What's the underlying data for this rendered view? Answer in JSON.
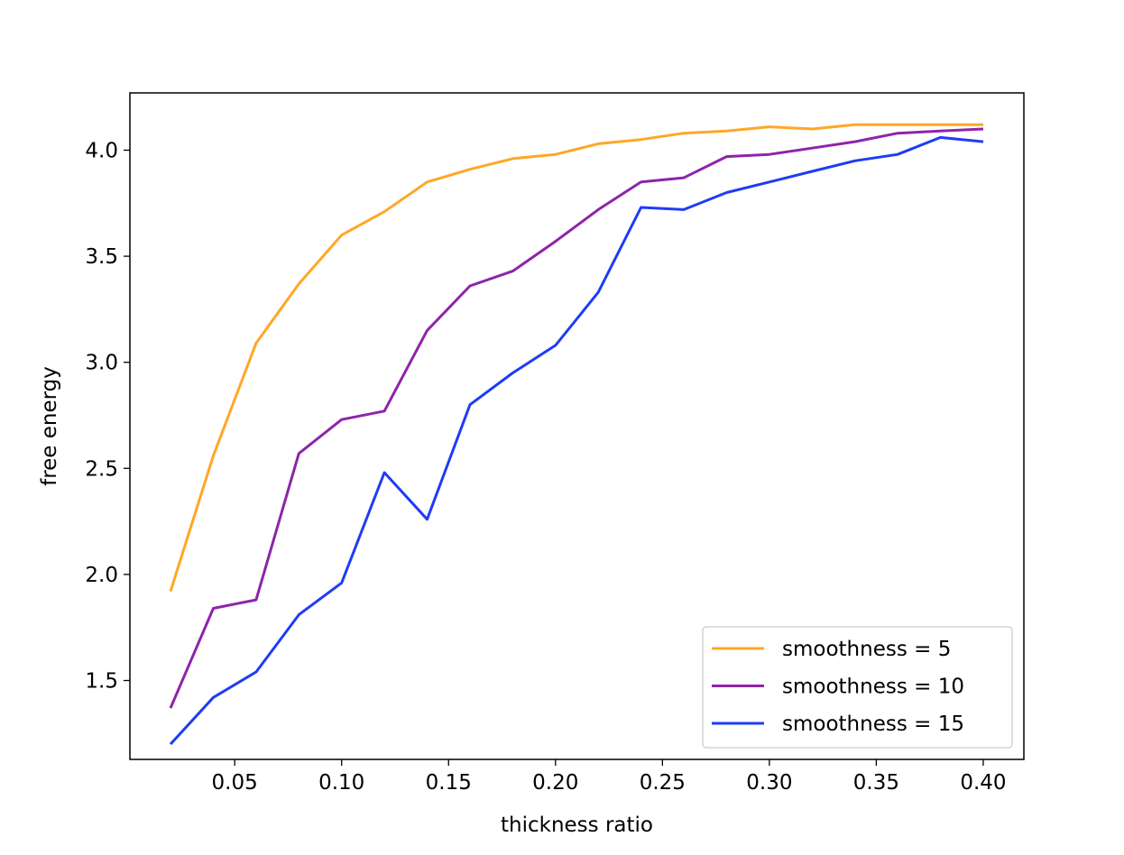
{
  "chart_data": {
    "type": "line",
    "title": "",
    "xlabel": "thickness ratio",
    "ylabel": "free energy",
    "xlim": [
      0.001,
      0.419
    ],
    "ylim": [
      1.128,
      4.27
    ],
    "xticks": [
      0.05,
      0.1,
      0.15,
      0.2,
      0.25,
      0.3,
      0.35,
      0.4
    ],
    "xtick_labels": [
      "0.05",
      "0.10",
      "0.15",
      "0.20",
      "0.25",
      "0.30",
      "0.35",
      "0.40"
    ],
    "yticks": [
      1.5,
      2.0,
      2.5,
      3.0,
      3.5,
      4.0
    ],
    "ytick_labels": [
      "1.5",
      "2.0",
      "2.5",
      "3.0",
      "3.5",
      "4.0"
    ],
    "grid": false,
    "legend_position": "lower-right",
    "x": [
      0.02,
      0.04,
      0.06,
      0.08,
      0.1,
      0.12,
      0.14,
      0.16,
      0.18,
      0.2,
      0.22,
      0.24,
      0.26,
      0.28,
      0.3,
      0.32,
      0.34,
      0.36,
      0.38,
      0.4
    ],
    "series": [
      {
        "name": "smoothness = 5",
        "color": "#ffa726",
        "values": [
          1.92,
          2.56,
          3.09,
          3.37,
          3.6,
          3.71,
          3.85,
          3.91,
          3.96,
          3.98,
          4.03,
          4.05,
          4.08,
          4.09,
          4.11,
          4.1,
          4.12,
          4.12,
          4.12,
          4.12
        ]
      },
      {
        "name": "smoothness = 10",
        "color": "#8e24aa",
        "values": [
          1.37,
          1.84,
          1.88,
          2.57,
          2.73,
          2.77,
          3.15,
          3.36,
          3.43,
          3.57,
          3.72,
          3.85,
          3.87,
          3.97,
          3.98,
          4.01,
          4.04,
          4.08,
          4.09,
          4.1
        ]
      },
      {
        "name": "smoothness = 15",
        "color": "#1e3cf5",
        "values": [
          1.2,
          1.42,
          1.54,
          1.81,
          1.96,
          2.48,
          2.26,
          2.8,
          2.95,
          3.08,
          3.33,
          3.73,
          3.72,
          3.8,
          3.85,
          3.9,
          3.95,
          3.98,
          4.06,
          4.04
        ]
      }
    ]
  }
}
